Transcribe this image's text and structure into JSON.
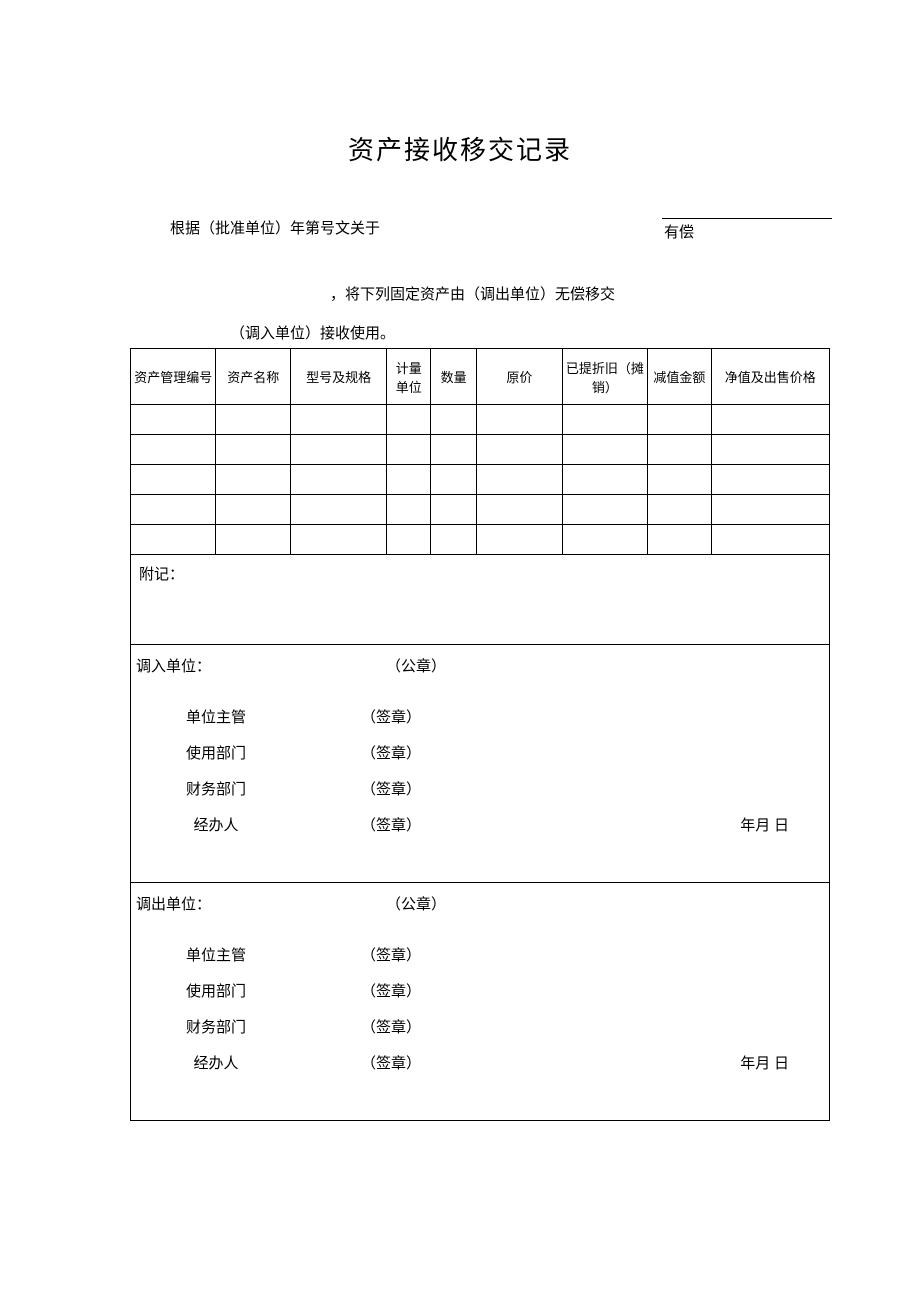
{
  "document": {
    "title": "资产接收移交记录",
    "intro_line1": "根据（批准单位）年第号文关于",
    "intro_line2": "，将下列固定资产由（调出单位）无偿移交",
    "youchang": "有偿",
    "intro_line3": "（调入单位）接收使用。"
  },
  "table": {
    "headers": {
      "col1": "资产管理编号",
      "col2": "资产名称",
      "col3": "型号及规格",
      "col4": "计量单位",
      "col5": "数量",
      "col6": "原价",
      "col7": "已提折旧（摊销）",
      "col8": "减值金额",
      "col9": "净值及出售价格"
    },
    "rows": [
      {
        "c1": "",
        "c2": "",
        "c3": "",
        "c4": "",
        "c5": "",
        "c6": "",
        "c7": "",
        "c8": "",
        "c9": ""
      },
      {
        "c1": "",
        "c2": "",
        "c3": "",
        "c4": "",
        "c5": "",
        "c6": "",
        "c7": "",
        "c8": "",
        "c9": ""
      },
      {
        "c1": "",
        "c2": "",
        "c3": "",
        "c4": "",
        "c5": "",
        "c6": "",
        "c7": "",
        "c8": "",
        "c9": ""
      },
      {
        "c1": "",
        "c2": "",
        "c3": "",
        "c4": "",
        "c5": "",
        "c6": "",
        "c7": "",
        "c8": "",
        "c9": ""
      },
      {
        "c1": "",
        "c2": "",
        "c3": "",
        "c4": "",
        "c5": "",
        "c6": "",
        "c7": "",
        "c8": "",
        "c9": ""
      }
    ],
    "notes_label": "附记：",
    "notes_value": ""
  },
  "signature_in": {
    "unit_label": "调入单位：",
    "seal": "（公章）",
    "supervisor": "单位主管",
    "department": "使用部门",
    "finance": "财务部门",
    "handler": "经办人",
    "stamp": "（签章）",
    "date": "年月    日"
  },
  "signature_out": {
    "unit_label": "调出单位：",
    "seal": "（公章）",
    "supervisor": "单位主管",
    "department": "使用部门",
    "finance": "财务部门",
    "handler": "经办人",
    "stamp": "（签章）",
    "date": "年月    日"
  }
}
